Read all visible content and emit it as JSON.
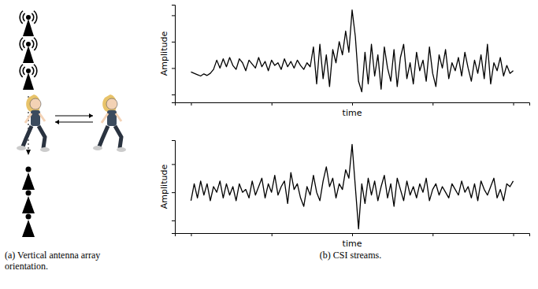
{
  "chart_data": [
    {
      "type": "line",
      "x_label": "time",
      "y_label": "Amplitude",
      "tick_labels": false,
      "grid": false,
      "xlim": [
        -20,
        420
      ],
      "xticks": [
        0,
        100,
        200,
        300,
        400
      ],
      "ylim": [
        -0.3,
        3.4
      ],
      "yticks": [
        0,
        1,
        2,
        3
      ],
      "x": [
        0,
        4,
        8,
        12,
        16,
        20,
        24,
        28,
        32,
        36,
        40,
        44,
        48,
        52,
        56,
        60,
        64,
        68,
        72,
        76,
        80,
        84,
        88,
        92,
        96,
        100,
        104,
        108,
        112,
        116,
        120,
        124,
        128,
        132,
        136,
        140,
        144,
        148,
        152,
        156,
        160,
        164,
        168,
        172,
        176,
        180,
        184,
        188,
        192,
        196,
        200,
        204,
        208,
        212,
        216,
        220,
        224,
        228,
        232,
        236,
        240,
        244,
        248,
        252,
        256,
        260,
        264,
        268,
        272,
        276,
        280,
        284,
        288,
        292,
        296,
        300,
        304,
        308,
        312,
        316,
        320,
        324,
        328,
        332,
        336,
        340,
        344,
        348,
        352,
        356,
        360,
        364,
        368,
        372,
        376,
        380,
        384,
        388,
        392,
        396,
        400
      ],
      "series": [
        {
          "color": "#000000",
          "values": [
            0.85,
            0.8,
            0.75,
            0.7,
            0.78,
            0.72,
            0.8,
            0.95,
            1.3,
            1.0,
            1.35,
            1.05,
            1.4,
            1.1,
            0.95,
            1.35,
            1.2,
            0.9,
            1.3,
            1.15,
            1.0,
            1.4,
            1.05,
            1.25,
            0.9,
            1.3,
            1.1,
            1.2,
            0.95,
            1.35,
            1.05,
            1.25,
            1.0,
            1.3,
            1.1,
            0.95,
            1.2,
            1.05,
            1.8,
            0.4,
            1.9,
            0.6,
            1.5,
            0.3,
            1.7,
            1.2,
            2.0,
            1.5,
            2.4,
            1.6,
            3.2,
            2.2,
            0.5,
            0.1,
            1.6,
            0.4,
            1.9,
            0.7,
            1.5,
            0.2,
            1.8,
            1.0,
            0.5,
            1.7,
            0.3,
            1.4,
            1.9,
            0.6,
            1.2,
            0.4,
            1.6,
            0.9,
            1.3,
            0.5,
            1.8,
            0.8,
            0.3,
            1.5,
            1.0,
            1.7,
            0.6,
            1.2,
            0.9,
            1.4,
            0.7,
            1.6,
            1.0,
            0.5,
            1.3,
            0.8,
            1.5,
            0.6,
            1.9,
            0.4,
            1.2,
            0.9,
            1.4,
            0.7,
            1.1,
            0.8,
            0.9
          ]
        }
      ]
    },
    {
      "type": "line",
      "x_label": "time",
      "y_label": "Amplitude",
      "tick_labels": false,
      "grid": false,
      "xlim": [
        -20,
        420
      ],
      "xticks": [
        0,
        100,
        200,
        300,
        400
      ],
      "ylim": [
        -0.45,
        2.85
      ],
      "yticks": [
        0,
        1,
        2
      ],
      "x": [
        0,
        4,
        8,
        12,
        16,
        20,
        24,
        28,
        32,
        36,
        40,
        44,
        48,
        52,
        56,
        60,
        64,
        68,
        72,
        76,
        80,
        84,
        88,
        92,
        96,
        100,
        104,
        108,
        112,
        116,
        120,
        124,
        128,
        132,
        136,
        140,
        144,
        148,
        152,
        156,
        160,
        164,
        168,
        172,
        176,
        180,
        184,
        188,
        192,
        196,
        200,
        204,
        208,
        212,
        216,
        220,
        224,
        228,
        232,
        236,
        240,
        244,
        248,
        252,
        256,
        260,
        264,
        268,
        272,
        276,
        280,
        284,
        288,
        292,
        296,
        300,
        304,
        308,
        312,
        316,
        320,
        324,
        328,
        332,
        336,
        340,
        344,
        348,
        352,
        356,
        360,
        364,
        368,
        372,
        376,
        380,
        384,
        388,
        392,
        396,
        400
      ],
      "series": [
        {
          "color": "#000000",
          "values": [
            0.7,
            1.3,
            0.8,
            1.4,
            0.9,
            1.3,
            0.7,
            1.2,
            1.0,
            1.4,
            0.8,
            1.3,
            0.9,
            1.2,
            0.7,
            1.3,
            1.0,
            1.1,
            0.8,
            1.4,
            0.9,
            1.2,
            1.5,
            0.8,
            1.3,
            1.0,
            1.6,
            0.9,
            1.2,
            1.4,
            0.6,
            1.7,
            1.1,
            1.3,
            0.8,
            0.5,
            1.2,
            0.9,
            1.6,
            1.0,
            0.7,
            1.4,
            1.9,
            1.2,
            1.5,
            0.8,
            1.3,
            1.1,
            1.8,
            1.5,
            2.7,
            1.2,
            -0.3,
            1.3,
            0.6,
            1.5,
            0.9,
            1.4,
            0.7,
            1.2,
            1.6,
            0.8,
            1.3,
            0.5,
            1.5,
            1.1,
            0.7,
            1.4,
            0.9,
            1.2,
            0.8,
            1.3,
            1.0,
            1.5,
            0.7,
            1.1,
            1.3,
            0.9,
            1.2,
            1.0,
            0.8,
            1.3,
            1.1,
            0.9,
            1.4,
            1.0,
            1.2,
            0.8,
            1.3,
            0.7,
            1.4,
            1.1,
            0.9,
            1.2,
            1.5,
            0.8,
            1.1,
            0.7,
            1.3,
            1.2,
            1.4
          ]
        }
      ]
    }
  ],
  "figure": {
    "captions": [
      "(a) Vertical antenna array orientation.",
      "(b) CSI streams."
    ]
  }
}
